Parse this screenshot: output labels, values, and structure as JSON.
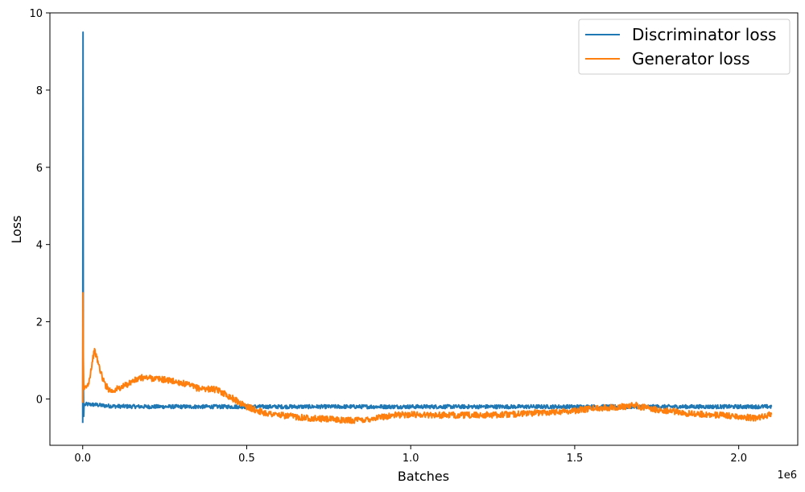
{
  "chart_data": {
    "type": "line",
    "title": "",
    "xlabel": "Batches",
    "ylabel": "Loss",
    "x_offset_label": "1e6",
    "xlim": [
      -0.1,
      2.18
    ],
    "ylim": [
      -1.2,
      10
    ],
    "x_ticks": [
      0.0,
      0.5,
      1.0,
      1.5,
      2.0
    ],
    "x_tick_labels": [
      "0.0",
      "0.5",
      "1.0",
      "1.5",
      "2.0"
    ],
    "y_ticks": [
      0,
      2,
      4,
      6,
      8,
      10
    ],
    "y_tick_labels": [
      "0",
      "2",
      "4",
      "6",
      "8",
      "10"
    ],
    "grid": false,
    "legend_position": "top-right",
    "series": [
      {
        "name": "Discriminator loss",
        "color": "#1f77b4",
        "x": [
          0.0,
          0.001,
          0.002,
          0.003,
          0.004,
          0.006,
          0.01,
          0.02,
          0.04,
          0.06,
          0.08,
          0.1,
          0.2,
          0.4,
          0.6,
          0.8,
          1.0,
          1.2,
          1.4,
          1.6,
          1.8,
          2.0,
          2.1
        ],
        "y": [
          -0.62,
          9.5,
          0.5,
          -0.45,
          -0.2,
          -0.15,
          -0.14,
          -0.14,
          -0.15,
          -0.17,
          -0.18,
          -0.19,
          -0.2,
          -0.2,
          -0.2,
          -0.2,
          -0.2,
          -0.2,
          -0.2,
          -0.2,
          -0.2,
          -0.2,
          -0.2
        ],
        "noise": 0.05
      },
      {
        "name": "Generator loss",
        "color": "#ff7f0e",
        "x": [
          0.0,
          0.001,
          0.002,
          0.003,
          0.005,
          0.01,
          0.015,
          0.02,
          0.03,
          0.035,
          0.04,
          0.05,
          0.06,
          0.07,
          0.08,
          0.09,
          0.1,
          0.12,
          0.15,
          0.18,
          0.2,
          0.25,
          0.3,
          0.35,
          0.4,
          0.42,
          0.45,
          0.5,
          0.55,
          0.6,
          0.7,
          0.8,
          0.85,
          0.9,
          0.95,
          1.0,
          1.1,
          1.2,
          1.3,
          1.4,
          1.5,
          1.55,
          1.6,
          1.65,
          1.68,
          1.7,
          1.75,
          1.8,
          1.85,
          1.9,
          2.0,
          2.05,
          2.08,
          2.1
        ],
        "y": [
          -0.1,
          2.75,
          1.0,
          0.4,
          0.25,
          0.3,
          0.35,
          0.5,
          1.0,
          1.25,
          1.15,
          0.85,
          0.55,
          0.35,
          0.25,
          0.2,
          0.25,
          0.3,
          0.45,
          0.55,
          0.55,
          0.5,
          0.42,
          0.28,
          0.25,
          0.2,
          0.05,
          -0.2,
          -0.35,
          -0.42,
          -0.5,
          -0.55,
          -0.55,
          -0.48,
          -0.42,
          -0.4,
          -0.42,
          -0.42,
          -0.4,
          -0.35,
          -0.3,
          -0.25,
          -0.22,
          -0.2,
          -0.15,
          -0.2,
          -0.28,
          -0.32,
          -0.38,
          -0.4,
          -0.45,
          -0.5,
          -0.45,
          -0.4
        ],
        "noise": 0.08
      }
    ]
  }
}
